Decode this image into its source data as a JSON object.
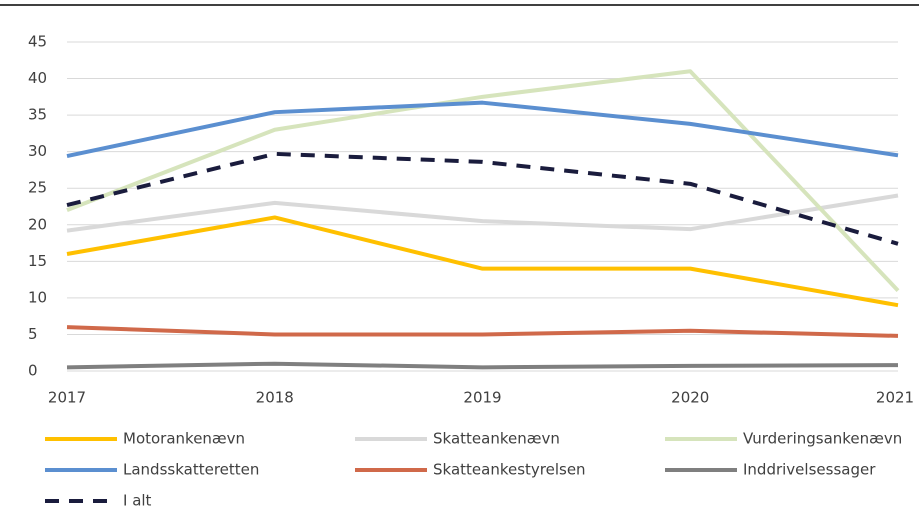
{
  "chart_data": {
    "type": "line",
    "categories": [
      "2017",
      "2018",
      "2019",
      "2020",
      "2021"
    ],
    "series": [
      {
        "name": "Motorankenævn",
        "color": "#ffc000",
        "values": [
          16,
          21,
          14,
          14,
          9
        ]
      },
      {
        "name": "Skatteankenævn",
        "color": "#d9d9d9",
        "values": [
          19.2,
          23,
          20.5,
          19.4,
          24
        ]
      },
      {
        "name": "Vurderingsankenævn",
        "color": "#d6e4bc",
        "values": [
          22,
          33,
          37.5,
          41,
          11
        ]
      },
      {
        "name": "Landsskatteretten",
        "color": "#5b8fd0",
        "values": [
          29.4,
          35.4,
          36.7,
          33.8,
          29.5
        ]
      },
      {
        "name": "Skatteankestyrelsen",
        "color": "#d0694a",
        "values": [
          6,
          5,
          5,
          5.5,
          4.8
        ]
      },
      {
        "name": "Inddrivelsessager",
        "color": "#7f7f7f",
        "values": [
          0.5,
          1,
          0.5,
          0.7,
          0.8
        ]
      },
      {
        "name": "I alt",
        "color": "#1a1c3d",
        "dashed": true,
        "values": [
          22.7,
          29.7,
          28.6,
          25.6,
          17.4
        ]
      }
    ],
    "ylim": [
      0,
      45
    ],
    "yticks": [
      0,
      5,
      10,
      15,
      20,
      25,
      30,
      35,
      40,
      45
    ],
    "grid": true,
    "legend": "bottom"
  }
}
